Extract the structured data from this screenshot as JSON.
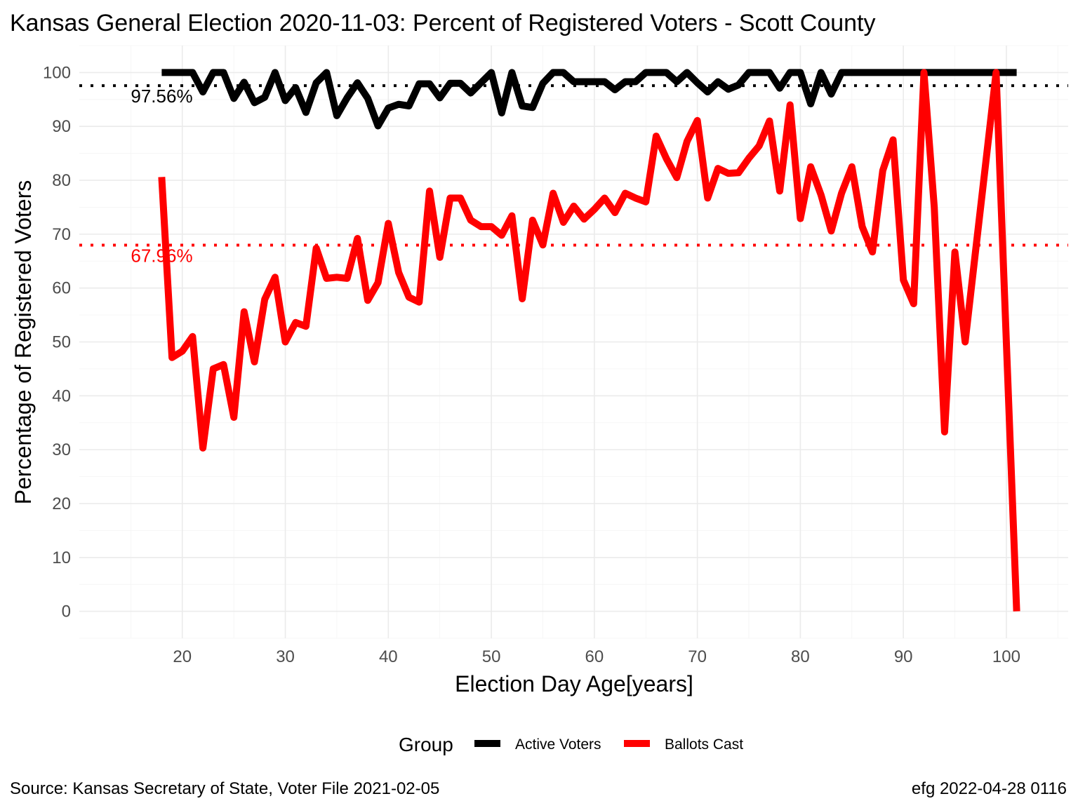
{
  "chart_data": {
    "type": "line",
    "title": "Kansas General Election 2020-11-03:  Percent of Registered Voters - Scott County",
    "xlabel": "Election Day Age[years]",
    "ylabel": "Percentage of Registered Voters",
    "xlim": [
      10,
      106
    ],
    "ylim": [
      -5,
      105
    ],
    "x_ticks": [
      20,
      30,
      40,
      50,
      60,
      70,
      80,
      90,
      100
    ],
    "y_ticks": [
      0,
      10,
      20,
      30,
      40,
      50,
      60,
      70,
      80,
      90,
      100
    ],
    "grid": true,
    "legend_position": "bottom",
    "legend_title": "Group",
    "x": [
      18,
      19,
      20,
      21,
      22,
      23,
      24,
      25,
      26,
      27,
      28,
      29,
      30,
      31,
      32,
      33,
      34,
      35,
      36,
      37,
      38,
      39,
      40,
      41,
      42,
      43,
      44,
      45,
      46,
      47,
      48,
      49,
      50,
      51,
      52,
      53,
      54,
      55,
      56,
      57,
      58,
      59,
      60,
      61,
      62,
      63,
      64,
      65,
      66,
      67,
      68,
      69,
      70,
      71,
      72,
      73,
      74,
      75,
      76,
      77,
      78,
      79,
      80,
      81,
      82,
      83,
      84,
      85,
      86,
      87,
      88,
      89,
      90,
      91,
      92,
      93,
      94,
      95,
      96,
      97,
      98,
      99,
      100,
      101
    ],
    "series": [
      {
        "name": "Active Voters",
        "color": "#000000",
        "values": [
          100,
          100,
          100,
          100,
          96.4,
          100,
          100,
          95.2,
          98.2,
          94.4,
          95.4,
          100,
          94.8,
          97.2,
          92.6,
          98.1,
          100,
          92,
          95.3,
          98.1,
          95.2,
          90.1,
          93.4,
          94.1,
          93.8,
          97.9,
          97.9,
          95.3,
          98,
          98,
          96.2,
          98.1,
          100,
          92.5,
          100,
          93.8,
          93.5,
          98,
          100,
          100,
          98.3,
          98.3,
          98.3,
          98.3,
          96.8,
          98.3,
          98.3,
          100,
          100,
          100,
          98.3,
          100,
          98.1,
          96.4,
          98.3,
          96.9,
          97.7,
          100,
          100,
          100,
          97.1,
          100,
          100,
          94.2,
          100,
          96,
          100,
          100,
          100,
          100,
          100,
          100,
          100,
          100,
          100,
          100,
          100,
          100,
          100,
          100,
          100,
          100,
          100,
          100
        ]
      },
      {
        "name": "Ballots Cast",
        "color": "#ff0000",
        "values": [
          80.6,
          47.1,
          48.3,
          51,
          30.3,
          45,
          45.8,
          36,
          55.6,
          46.3,
          57.9,
          62,
          50,
          53.6,
          52.9,
          67.4,
          61.8,
          62,
          61.8,
          69.2,
          57.7,
          61,
          72,
          62.9,
          58.3,
          57.4,
          78,
          65.7,
          76.7,
          76.7,
          72.6,
          71.4,
          71.4,
          69.8,
          73.4,
          58,
          72.6,
          68,
          77.6,
          72.2,
          75.2,
          72.8,
          74.6,
          76.7,
          74,
          77.6,
          76.7,
          76,
          88.2,
          84,
          80.5,
          87.2,
          91.1,
          76.7,
          82.2,
          81.3,
          81.4,
          84.1,
          86.4,
          91,
          78,
          94,
          72.9,
          82.5,
          77.3,
          70.6,
          77.6,
          82.5,
          71.4,
          66.7,
          81.8,
          87.5,
          61.5,
          57.1,
          100,
          75,
          33.3,
          66.7,
          50,
          66.7,
          83.3,
          100,
          50,
          0
        ]
      }
    ],
    "reference_lines": [
      {
        "value": 97.56,
        "label": "97.56%",
        "color": "#000000"
      },
      {
        "value": 67.96,
        "label": "67.96%",
        "color": "#ff0000"
      }
    ]
  },
  "caption": {
    "left": "Source:  Kansas Secretary of State, Voter File  2021-02-05",
    "right": "efg 2022-04-28 0116"
  }
}
